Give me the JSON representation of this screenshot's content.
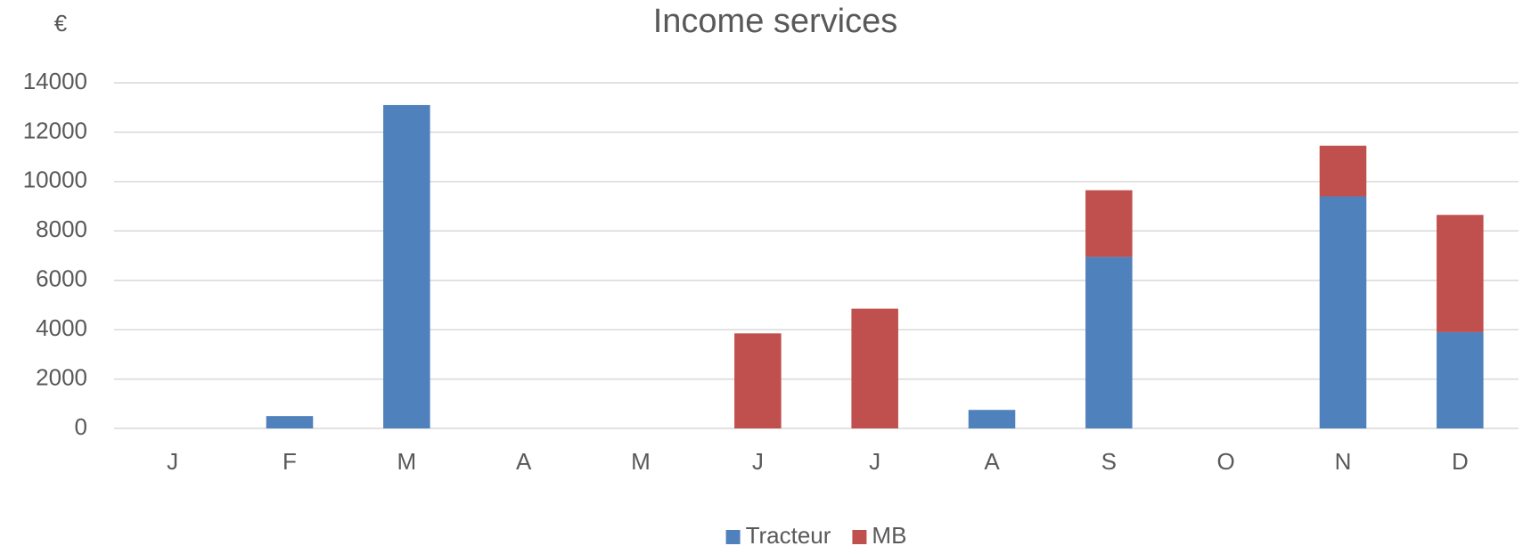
{
  "chart_data": {
    "type": "bar",
    "stacked": true,
    "title": "Income services",
    "y_label": "€",
    "categories": [
      "J",
      "F",
      "M",
      "A",
      "M",
      "J",
      "J",
      "A",
      "S",
      "O",
      "N",
      "D"
    ],
    "series": [
      {
        "name": "Tracteur",
        "color": "#4f81bd",
        "values": [
          0,
          500,
          13100,
          0,
          0,
          0,
          0,
          750,
          6950,
          0,
          9400,
          3900
        ]
      },
      {
        "name": "MB",
        "color": "#c0504d",
        "values": [
          0,
          0,
          0,
          0,
          0,
          3850,
          4850,
          0,
          2700,
          0,
          2050,
          4750
        ]
      }
    ],
    "ylim": [
      0,
      14000
    ],
    "yticks": [
      0,
      2000,
      4000,
      6000,
      8000,
      10000,
      12000,
      14000
    ],
    "grid": true,
    "legend": "bottom"
  }
}
